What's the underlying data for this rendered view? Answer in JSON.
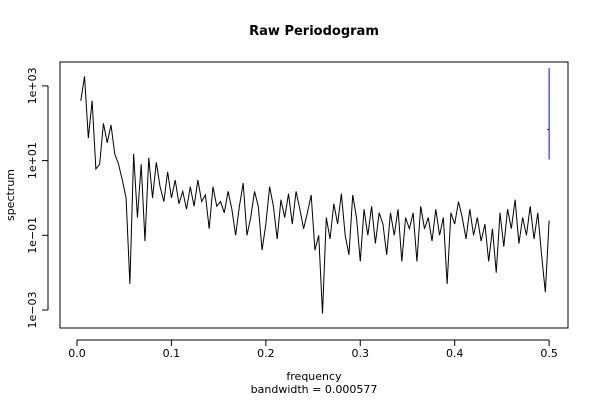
{
  "chart_data": {
    "type": "line",
    "title": "Raw Periodogram",
    "x_label": "frequency",
    "subtitle": "bandwidth = 0.000577",
    "y_label": "spectrum",
    "color": "#000000",
    "ylog": true,
    "x": [
      0.004,
      0.008,
      0.012,
      0.016,
      0.02,
      0.024,
      0.028,
      0.032,
      0.036,
      0.04,
      0.044,
      0.048,
      0.052,
      0.056,
      0.06,
      0.064,
      0.068,
      0.072,
      0.076,
      0.08,
      0.084,
      0.088,
      0.092,
      0.096,
      0.1,
      0.104,
      0.108,
      0.112,
      0.116,
      0.12,
      0.124,
      0.128,
      0.132,
      0.136,
      0.14,
      0.144,
      0.148,
      0.152,
      0.156,
      0.16,
      0.164,
      0.168,
      0.172,
      0.176,
      0.18,
      0.184,
      0.188,
      0.192,
      0.196,
      0.2,
      0.204,
      0.208,
      0.212,
      0.216,
      0.22,
      0.224,
      0.228,
      0.232,
      0.236,
      0.24,
      0.244,
      0.248,
      0.252,
      0.256,
      0.26,
      0.264,
      0.268,
      0.272,
      0.276,
      0.28,
      0.284,
      0.288,
      0.292,
      0.296,
      0.3,
      0.304,
      0.308,
      0.312,
      0.316,
      0.32,
      0.324,
      0.328,
      0.332,
      0.336,
      0.34,
      0.344,
      0.348,
      0.352,
      0.356,
      0.36,
      0.364,
      0.368,
      0.372,
      0.376,
      0.38,
      0.384,
      0.388,
      0.392,
      0.396,
      0.4,
      0.404,
      0.408,
      0.412,
      0.416,
      0.42,
      0.424,
      0.428,
      0.432,
      0.436,
      0.44,
      0.444,
      0.448,
      0.452,
      0.456,
      0.46,
      0.464,
      0.468,
      0.472,
      0.476,
      0.48,
      0.484,
      0.488,
      0.492,
      0.496,
      0.5
    ],
    "values": [
      400,
      1800,
      40,
      400,
      6,
      8,
      100,
      30,
      90,
      15,
      8,
      3,
      1,
      0.005,
      15,
      0.3,
      8,
      0.07,
      12,
      1,
      9,
      2,
      0.8,
      5,
      1,
      3,
      0.7,
      1.5,
      0.5,
      2,
      0.6,
      3,
      0.8,
      1.2,
      0.15,
      2,
      0.6,
      0.8,
      0.4,
      1.5,
      0.5,
      0.1,
      0.6,
      2.5,
      0.1,
      0.3,
      1.5,
      0.6,
      0.04,
      0.2,
      2,
      0.6,
      0.08,
      0.9,
      0.3,
      1.3,
      0.2,
      1.5,
      0.5,
      0.15,
      0.4,
      1.2,
      0.04,
      0.1,
      0.0008,
      0.3,
      0.08,
      0.7,
      0.2,
      1.3,
      0.1,
      0.03,
      1.2,
      0.3,
      0.02,
      0.5,
      0.1,
      0.6,
      0.06,
      0.4,
      0.2,
      0.03,
      0.4,
      0.1,
      0.5,
      0.02,
      0.3,
      0.15,
      0.4,
      0.02,
      0.6,
      0.15,
      0.3,
      0.07,
      0.5,
      0.1,
      0.3,
      0.005,
      0.4,
      0.2,
      0.8,
      0.3,
      0.08,
      0.5,
      0.1,
      0.3,
      0.07,
      0.2,
      0.02,
      0.15,
      0.01,
      0.4,
      0.05,
      0.5,
      0.15,
      0.9,
      0.06,
      0.3,
      0.1,
      0.6,
      0.08,
      0.4,
      0.03,
      0.003,
      0.25
    ],
    "ci_bar": {
      "x": 0.5,
      "lower": 10.7,
      "center": 68,
      "upper": 3000,
      "color": "#0000ff"
    },
    "xlim": [
      -0.018,
      0.52
    ],
    "xticks": [
      {
        "value": 0,
        "label": "0.0"
      },
      0.1,
      0.2,
      0.3,
      0.4,
      0.5
    ],
    "ylim": [
      0.00033,
      4365
    ],
    "yticks": [
      {
        "value": 0.001,
        "label": "1e−03"
      },
      {
        "value": 0.1,
        "label": "1e−01"
      },
      {
        "value": 10,
        "label": "1e+01"
      },
      {
        "value": 1000,
        "label": "1e+03"
      }
    ]
  }
}
